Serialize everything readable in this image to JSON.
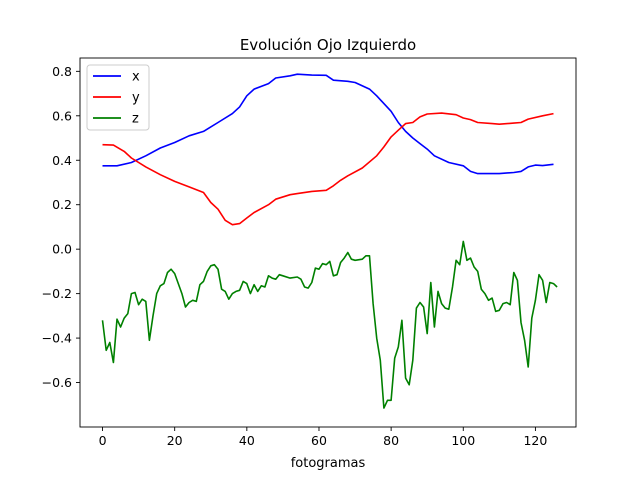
{
  "chart_data": {
    "type": "line",
    "title": "Evolución Ojo Izquierdo",
    "xlabel": "fotogramas",
    "ylabel": "",
    "xlim": [
      -6.25,
      131.25
    ],
    "ylim": [
      -0.8,
      0.86
    ],
    "xticks": [
      0,
      20,
      40,
      60,
      80,
      100,
      120
    ],
    "yticks": [
      -0.6,
      -0.4,
      -0.2,
      0.0,
      0.2,
      0.4,
      0.6,
      0.8
    ],
    "ytick_labels": [
      "−0.6",
      "−0.4",
      "−0.2",
      "0.0",
      "0.2",
      "0.4",
      "0.6",
      "0.8"
    ],
    "grid": false,
    "legend_position": "top-left",
    "series": [
      {
        "name": "x",
        "color": "#0000ff",
        "points": [
          [
            0,
            0.375
          ],
          [
            4,
            0.375
          ],
          [
            8,
            0.39
          ],
          [
            12,
            0.42
          ],
          [
            16,
            0.455
          ],
          [
            20,
            0.48
          ],
          [
            24,
            0.51
          ],
          [
            28,
            0.53
          ],
          [
            32,
            0.57
          ],
          [
            36,
            0.61
          ],
          [
            38,
            0.64
          ],
          [
            40,
            0.69
          ],
          [
            42,
            0.72
          ],
          [
            46,
            0.745
          ],
          [
            48,
            0.77
          ],
          [
            52,
            0.78
          ],
          [
            54,
            0.787
          ],
          [
            58,
            0.783
          ],
          [
            62,
            0.782
          ],
          [
            64,
            0.76
          ],
          [
            68,
            0.755
          ],
          [
            70,
            0.75
          ],
          [
            74,
            0.72
          ],
          [
            76,
            0.69
          ],
          [
            78,
            0.655
          ],
          [
            80,
            0.62
          ],
          [
            82,
            0.57
          ],
          [
            84,
            0.53
          ],
          [
            86,
            0.5
          ],
          [
            88,
            0.475
          ],
          [
            90,
            0.45
          ],
          [
            92,
            0.42
          ],
          [
            96,
            0.39
          ],
          [
            100,
            0.375
          ],
          [
            102,
            0.35
          ],
          [
            104,
            0.34
          ],
          [
            110,
            0.34
          ],
          [
            114,
            0.345
          ],
          [
            116,
            0.35
          ],
          [
            118,
            0.37
          ],
          [
            120,
            0.378
          ],
          [
            122,
            0.376
          ],
          [
            125,
            0.382
          ]
        ]
      },
      {
        "name": "y",
        "color": "#ff0000",
        "points": [
          [
            0,
            0.47
          ],
          [
            3,
            0.468
          ],
          [
            6,
            0.44
          ],
          [
            8,
            0.41
          ],
          [
            12,
            0.37
          ],
          [
            16,
            0.335
          ],
          [
            20,
            0.305
          ],
          [
            24,
            0.28
          ],
          [
            28,
            0.255
          ],
          [
            30,
            0.21
          ],
          [
            32,
            0.18
          ],
          [
            34,
            0.13
          ],
          [
            36,
            0.11
          ],
          [
            38,
            0.115
          ],
          [
            40,
            0.14
          ],
          [
            42,
            0.165
          ],
          [
            46,
            0.2
          ],
          [
            48,
            0.225
          ],
          [
            52,
            0.245
          ],
          [
            54,
            0.25
          ],
          [
            58,
            0.26
          ],
          [
            62,
            0.265
          ],
          [
            64,
            0.285
          ],
          [
            66,
            0.31
          ],
          [
            68,
            0.33
          ],
          [
            72,
            0.365
          ],
          [
            76,
            0.42
          ],
          [
            78,
            0.46
          ],
          [
            80,
            0.505
          ],
          [
            82,
            0.535
          ],
          [
            84,
            0.565
          ],
          [
            86,
            0.57
          ],
          [
            88,
            0.595
          ],
          [
            90,
            0.608
          ],
          [
            94,
            0.612
          ],
          [
            98,
            0.605
          ],
          [
            100,
            0.59
          ],
          [
            102,
            0.583
          ],
          [
            104,
            0.57
          ],
          [
            108,
            0.565
          ],
          [
            110,
            0.562
          ],
          [
            114,
            0.567
          ],
          [
            116,
            0.57
          ],
          [
            118,
            0.585
          ],
          [
            122,
            0.6
          ],
          [
            125,
            0.61
          ]
        ]
      },
      {
        "name": "z",
        "color": "#008000",
        "points": [
          [
            0,
            -0.32
          ],
          [
            1,
            -0.455
          ],
          [
            2,
            -0.42
          ],
          [
            3,
            -0.51
          ],
          [
            4,
            -0.315
          ],
          [
            5,
            -0.35
          ],
          [
            6,
            -0.31
          ],
          [
            7,
            -0.29
          ],
          [
            8,
            -0.2
          ],
          [
            9,
            -0.195
          ],
          [
            10,
            -0.25
          ],
          [
            11,
            -0.225
          ],
          [
            12,
            -0.235
          ],
          [
            13,
            -0.41
          ],
          [
            14,
            -0.3
          ],
          [
            15,
            -0.2
          ],
          [
            16,
            -0.165
          ],
          [
            17,
            -0.155
          ],
          [
            18,
            -0.105
          ],
          [
            19,
            -0.09
          ],
          [
            20,
            -0.11
          ],
          [
            21,
            -0.155
          ],
          [
            22,
            -0.2
          ],
          [
            23,
            -0.26
          ],
          [
            24,
            -0.24
          ],
          [
            25,
            -0.23
          ],
          [
            26,
            -0.235
          ],
          [
            27,
            -0.16
          ],
          [
            28,
            -0.145
          ],
          [
            29,
            -0.1
          ],
          [
            30,
            -0.075
          ],
          [
            31,
            -0.07
          ],
          [
            32,
            -0.09
          ],
          [
            33,
            -0.18
          ],
          [
            34,
            -0.19
          ],
          [
            35,
            -0.225
          ],
          [
            36,
            -0.2
          ],
          [
            37,
            -0.19
          ],
          [
            38,
            -0.185
          ],
          [
            39,
            -0.145
          ],
          [
            40,
            -0.155
          ],
          [
            41,
            -0.2
          ],
          [
            42,
            -0.16
          ],
          [
            43,
            -0.19
          ],
          [
            44,
            -0.165
          ],
          [
            45,
            -0.17
          ],
          [
            46,
            -0.12
          ],
          [
            47,
            -0.13
          ],
          [
            48,
            -0.135
          ],
          [
            49,
            -0.115
          ],
          [
            50,
            -0.12
          ],
          [
            52,
            -0.13
          ],
          [
            54,
            -0.125
          ],
          [
            55,
            -0.135
          ],
          [
            56,
            -0.17
          ],
          [
            57,
            -0.175
          ],
          [
            58,
            -0.15
          ],
          [
            59,
            -0.085
          ],
          [
            60,
            -0.09
          ],
          [
            61,
            -0.065
          ],
          [
            62,
            -0.07
          ],
          [
            63,
            -0.055
          ],
          [
            64,
            -0.12
          ],
          [
            65,
            -0.115
          ],
          [
            66,
            -0.06
          ],
          [
            67,
            -0.04
          ],
          [
            68,
            -0.015
          ],
          [
            69,
            -0.045
          ],
          [
            70,
            -0.05
          ],
          [
            72,
            -0.045
          ],
          [
            73,
            -0.03
          ],
          [
            74,
            -0.03
          ],
          [
            75,
            -0.245
          ],
          [
            76,
            -0.4
          ],
          [
            77,
            -0.5
          ],
          [
            78,
            -0.715
          ],
          [
            79,
            -0.68
          ],
          [
            80,
            -0.68
          ],
          [
            81,
            -0.49
          ],
          [
            82,
            -0.44
          ],
          [
            83,
            -0.32
          ],
          [
            84,
            -0.58
          ],
          [
            85,
            -0.61
          ],
          [
            86,
            -0.5
          ],
          [
            87,
            -0.265
          ],
          [
            88,
            -0.24
          ],
          [
            89,
            -0.26
          ],
          [
            90,
            -0.38
          ],
          [
            91,
            -0.15
          ],
          [
            92,
            -0.35
          ],
          [
            93,
            -0.19
          ],
          [
            94,
            -0.245
          ],
          [
            95,
            -0.265
          ],
          [
            96,
            -0.27
          ],
          [
            97,
            -0.17
          ],
          [
            98,
            -0.05
          ],
          [
            99,
            -0.07
          ],
          [
            100,
            0.035
          ],
          [
            101,
            -0.05
          ],
          [
            102,
            -0.04
          ],
          [
            103,
            -0.08
          ],
          [
            104,
            -0.1
          ],
          [
            105,
            -0.18
          ],
          [
            106,
            -0.2
          ],
          [
            107,
            -0.23
          ],
          [
            108,
            -0.22
          ],
          [
            109,
            -0.28
          ],
          [
            110,
            -0.275
          ],
          [
            111,
            -0.245
          ],
          [
            112,
            -0.24
          ],
          [
            113,
            -0.25
          ],
          [
            114,
            -0.105
          ],
          [
            115,
            -0.14
          ],
          [
            116,
            -0.33
          ],
          [
            117,
            -0.41
          ],
          [
            118,
            -0.53
          ],
          [
            119,
            -0.31
          ],
          [
            120,
            -0.23
          ],
          [
            121,
            -0.115
          ],
          [
            122,
            -0.14
          ],
          [
            123,
            -0.24
          ],
          [
            124,
            -0.15
          ],
          [
            125,
            -0.155
          ],
          [
            126,
            -0.17
          ]
        ]
      }
    ]
  }
}
